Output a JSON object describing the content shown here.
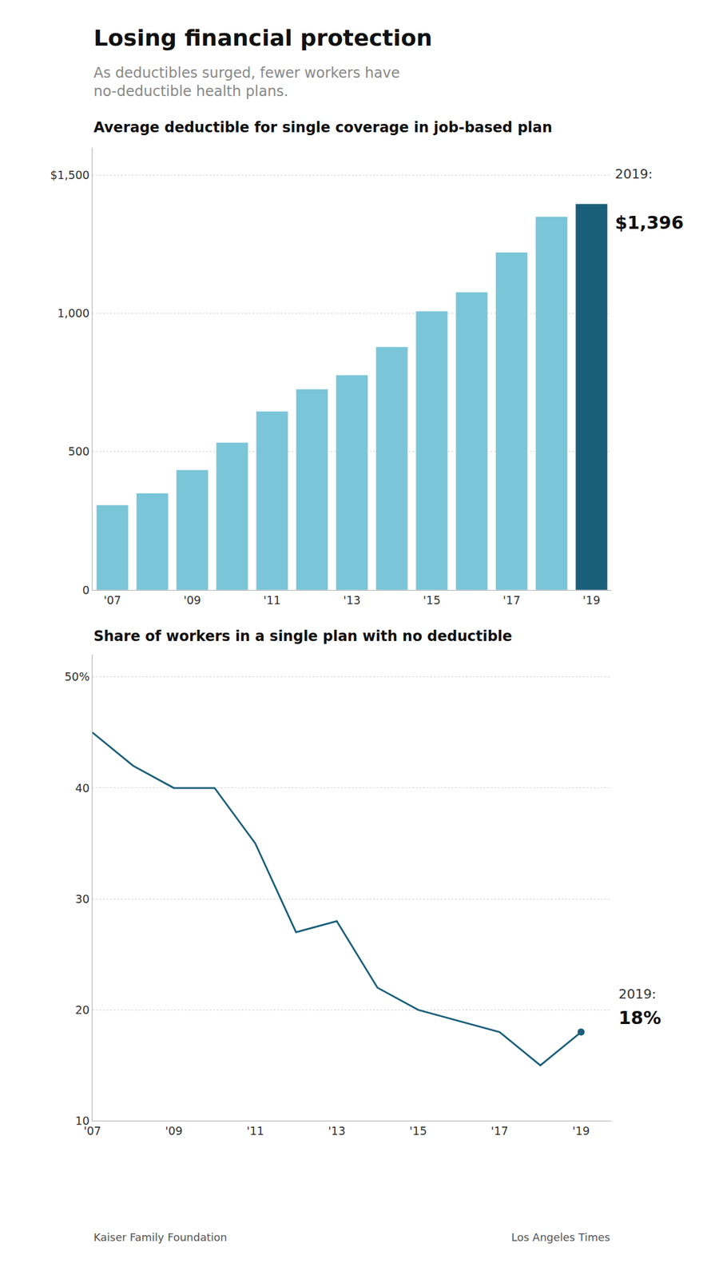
{
  "title": "Losing financial protection",
  "subtitle": "As deductibles surged, fewer workers have\nno-deductible health plans.",
  "annotations": [
    "Kaiser Family Foundation",
    "Los Angeles Times"
  ],
  "chart_data": [
    {
      "type": "bar",
      "title": "Average deductible for single coverage in job-based plan",
      "categories": [
        "'07",
        null,
        "'09",
        null,
        "'11",
        null,
        "'13",
        null,
        "'15",
        null,
        "'17",
        null,
        "'19"
      ],
      "values": [
        307,
        350,
        434,
        533,
        646,
        726,
        777,
        879,
        1008,
        1077,
        1221,
        1350,
        1396
      ],
      "colors": [
        "#7ac5d8",
        "#7ac5d8",
        "#7ac5d8",
        "#7ac5d8",
        "#7ac5d8",
        "#7ac5d8",
        "#7ac5d8",
        "#7ac5d8",
        "#7ac5d8",
        "#7ac5d8",
        "#7ac5d8",
        "#7ac5d8",
        "#1a5f7a"
      ],
      "ylim": [
        0,
        1600
      ],
      "yticks": [
        0,
        500,
        {
          "value": 1000,
          "label": "1,000"
        },
        {
          "value": 1500,
          "label": "$1,500"
        }
      ],
      "grid": true,
      "annotations": [
        "2019:",
        "$1,396"
      ]
    },
    {
      "type": "line",
      "title": "Share of workers in a single plan with no deductible",
      "categories": [
        "'07",
        null,
        "'09",
        null,
        "'11",
        null,
        "'13",
        null,
        "'15",
        null,
        "'17",
        null,
        "'19"
      ],
      "values": [
        45,
        42,
        40,
        40,
        35,
        27,
        28,
        22,
        20,
        19,
        18,
        15,
        18
      ],
      "color": "#1a5f7a",
      "ylim": [
        10,
        52
      ],
      "yticks": [
        10,
        20,
        30,
        40,
        {
          "value": 50,
          "label": "50%"
        }
      ],
      "grid": true,
      "annotations": [
        "2019:",
        "18%"
      ]
    }
  ]
}
